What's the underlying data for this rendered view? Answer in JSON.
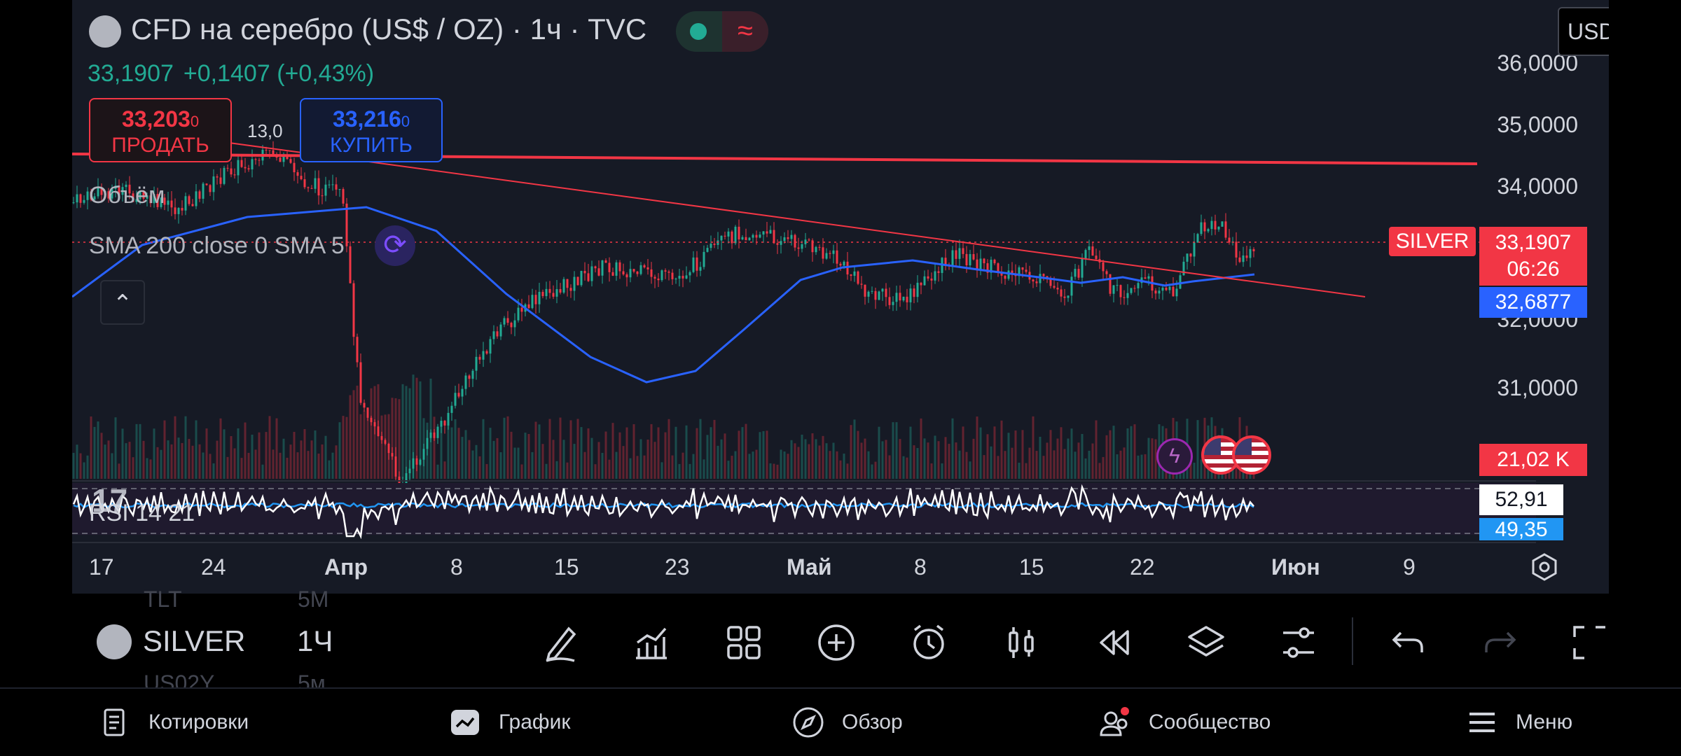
{
  "header": {
    "title": "CFD на серебро (US$ / OZ) · 1ч · TVC",
    "price": "33,1907",
    "change": "+0,1407 (+0,43%)"
  },
  "trade": {
    "sell_price_main": "33,203",
    "sell_price_small": "0",
    "sell_label": "ПРОДАТЬ",
    "spread": "13,0",
    "buy_price_main": "33,216",
    "buy_price_small": "0",
    "buy_label": "КУПИТЬ"
  },
  "indicators": {
    "volume": "Объём",
    "sma": "SMA 200 close 0 SMA 5",
    "rsi": "RSI 14 21"
  },
  "currency": "USD",
  "price_axis": [
    "36,0000",
    "35,0000",
    "34,0000",
    "31,0000",
    "32,0000"
  ],
  "tags": {
    "symbol": "SILVER",
    "last_price": "33,1907",
    "countdown": "06:26",
    "sma_price": "32,6877",
    "volume": "21,02 K",
    "rsi_1": "52,91",
    "rsi_2": "49,35"
  },
  "time_axis": [
    "17",
    "24",
    "Апр",
    "8",
    "15",
    "23",
    "Май",
    "8",
    "15",
    "22",
    "Июн",
    "9"
  ],
  "toolbar": {
    "symbol": "SILVER",
    "interval": "1Ч",
    "ghost_symbol_above": "TLT",
    "ghost_interval_above": "5М",
    "ghost_symbol_below": "US02Y",
    "ghost_interval_below": "5м"
  },
  "toolbar_icons": [
    "draw-icon",
    "indicators-icon",
    "layouts-icon",
    "add-icon",
    "alert-icon",
    "chart-type-icon",
    "replay-icon",
    "layers-icon",
    "settings-sliders-icon",
    "undo-icon",
    "redo-icon",
    "fullscreen-icon"
  ],
  "nav": {
    "quotes": "Котировки",
    "chart": "График",
    "overview": "Обзор",
    "community": "Сообщество",
    "menu": "Меню"
  },
  "colors": {
    "up": "#22ab94",
    "down": "#f23645",
    "sma": "#2962ff",
    "panel": "#161a25"
  }
}
